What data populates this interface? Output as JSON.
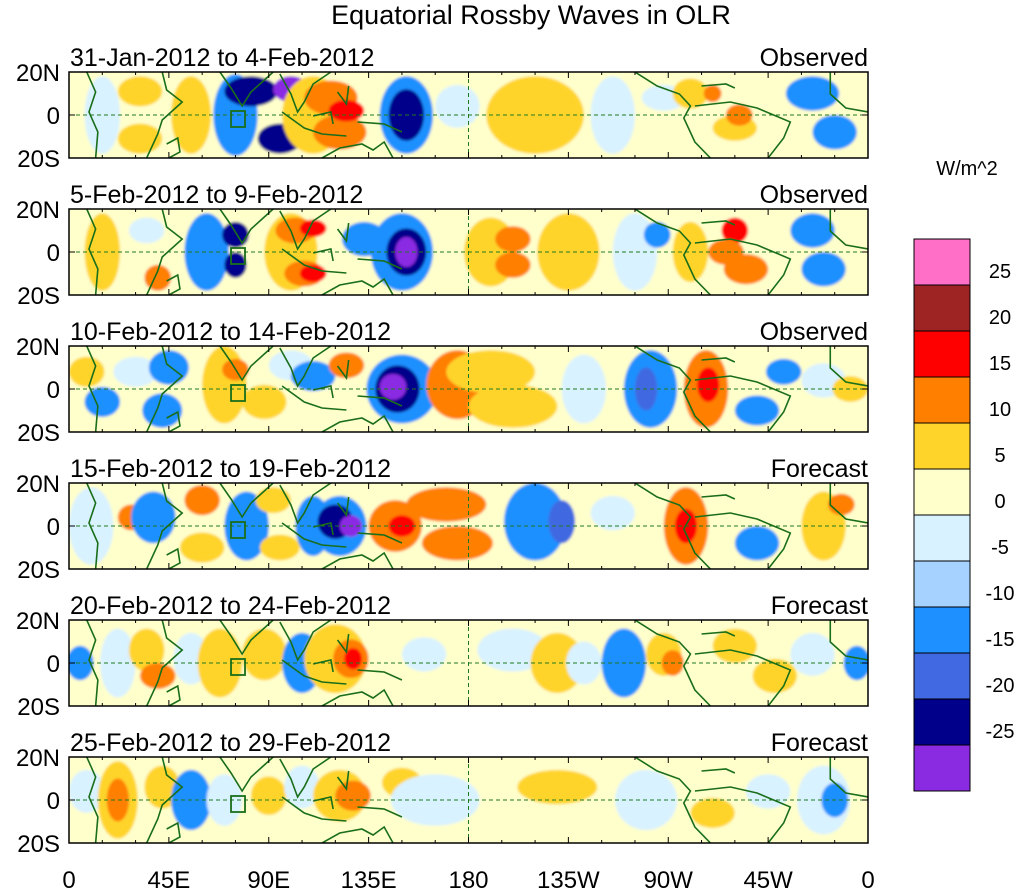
{
  "figure": {
    "title": "Equatorial Rossby Waves in OLR",
    "units_label": "W/m^2",
    "panels": [
      {
        "date_range": "31-Jan-2012 to 4-Feb-2012",
        "status": "Observed"
      },
      {
        "date_range": "5-Feb-2012 to 9-Feb-2012",
        "status": "Observed"
      },
      {
        "date_range": "10-Feb-2012 to 14-Feb-2012",
        "status": "Observed"
      },
      {
        "date_range": "15-Feb-2012 to 19-Feb-2012",
        "status": "Forecast"
      },
      {
        "date_range": "20-Feb-2012 to 24-Feb-2012",
        "status": "Forecast"
      },
      {
        "date_range": "25-Feb-2012 to 29-Feb-2012",
        "status": "Forecast"
      }
    ],
    "lat_labels": [
      "20N",
      "0",
      "20S"
    ],
    "lon_labels": [
      "0",
      "45E",
      "90E",
      "135E",
      "180",
      "135W",
      "90W",
      "45W",
      "0"
    ],
    "colorbar": {
      "levels": [
        "25",
        "20",
        "15",
        "10",
        "5",
        "0",
        "-5",
        "-10",
        "-15",
        "-20",
        "-25"
      ],
      "colors": [
        "#ff6ec7",
        "#9e2424",
        "#ff0000",
        "#ff7f00",
        "#ffd42a",
        "#ffffcc",
        "#d9f2ff",
        "#a6d2ff",
        "#1e90ff",
        "#4169e1",
        "#00008b",
        "#8a2be2"
      ]
    }
  }
}
